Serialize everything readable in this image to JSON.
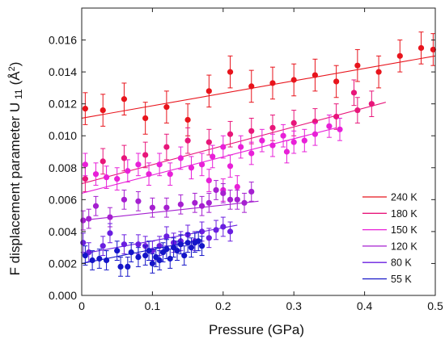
{
  "chart_data": {
    "type": "scatter",
    "xlabel": "Pressure (GPa)",
    "ylabel": "F displacement parameter U",
    "ylabel_sub": "11",
    "ylabel_unit": "(Å",
    "ylabel_sup": "2",
    "ylabel_close": ")",
    "xlim": [
      0,
      0.5
    ],
    "ylim": [
      0,
      0.018
    ],
    "xticks": [
      "0",
      "0.1",
      "0.2",
      "0.3",
      "0.4",
      "0.5"
    ],
    "yticks": [
      "0.000",
      "0.002",
      "0.004",
      "0.006",
      "0.008",
      "0.010",
      "0.012",
      "0.014",
      "0.016"
    ],
    "grid": false,
    "legend_position": "bottom-right",
    "series": [
      {
        "name": "240 K",
        "color": "#e8141c",
        "fit": [
          [
            0.0,
            0.0111
          ],
          [
            0.5,
            0.015
          ]
        ],
        "points": [
          [
            0.005,
            0.0117,
            0.001
          ],
          [
            0.03,
            0.0116,
            0.001
          ],
          [
            0.06,
            0.0123,
            0.001
          ],
          [
            0.09,
            0.0111,
            0.001
          ],
          [
            0.12,
            0.0118,
            0.001
          ],
          [
            0.15,
            0.011,
            0.001
          ],
          [
            0.18,
            0.0128,
            0.001
          ],
          [
            0.21,
            0.014,
            0.001
          ],
          [
            0.24,
            0.0131,
            0.001
          ],
          [
            0.27,
            0.0133,
            0.001
          ],
          [
            0.3,
            0.0135,
            0.001
          ],
          [
            0.33,
            0.0138,
            0.001
          ],
          [
            0.36,
            0.0134,
            0.001
          ],
          [
            0.39,
            0.0144,
            0.001
          ],
          [
            0.42,
            0.014,
            0.001
          ],
          [
            0.45,
            0.015,
            0.001
          ],
          [
            0.48,
            0.0155,
            0.001
          ],
          [
            0.497,
            0.0154,
            0.001
          ]
        ]
      },
      {
        "name": "180 K",
        "color": "#e8167a",
        "fit": [
          [
            0.0,
            0.007
          ],
          [
            0.43,
            0.0121
          ]
        ],
        "points": [
          [
            0.005,
            0.0073,
            0.0008
          ],
          [
            0.03,
            0.0084,
            0.0008
          ],
          [
            0.06,
            0.0086,
            0.0008
          ],
          [
            0.09,
            0.0088,
            0.0008
          ],
          [
            0.12,
            0.0093,
            0.0008
          ],
          [
            0.15,
            0.0097,
            0.0008
          ],
          [
            0.18,
            0.0096,
            0.0008
          ],
          [
            0.21,
            0.0101,
            0.0008
          ],
          [
            0.24,
            0.0103,
            0.0008
          ],
          [
            0.27,
            0.0105,
            0.0008
          ],
          [
            0.3,
            0.0108,
            0.0008
          ],
          [
            0.33,
            0.0109,
            0.0008
          ],
          [
            0.36,
            0.0112,
            0.0008
          ],
          [
            0.39,
            0.0116,
            0.0008
          ],
          [
            0.41,
            0.012,
            0.0008
          ],
          [
            0.385,
            0.0127,
            0.0008
          ]
        ]
      },
      {
        "name": "150 K",
        "color": "#e820d8",
        "fit": [
          [
            0.0,
            0.0064
          ],
          [
            0.36,
            0.0105
          ]
        ],
        "points": [
          [
            0.005,
            0.0082,
            0.0007
          ],
          [
            0.02,
            0.0076,
            0.0007
          ],
          [
            0.035,
            0.0074,
            0.0007
          ],
          [
            0.05,
            0.0073,
            0.0007
          ],
          [
            0.065,
            0.0078,
            0.0007
          ],
          [
            0.08,
            0.0082,
            0.0007
          ],
          [
            0.095,
            0.0076,
            0.0007
          ],
          [
            0.11,
            0.0082,
            0.0007
          ],
          [
            0.125,
            0.0076,
            0.0007
          ],
          [
            0.14,
            0.0086,
            0.0007
          ],
          [
            0.155,
            0.008,
            0.0007
          ],
          [
            0.17,
            0.0082,
            0.0007
          ],
          [
            0.185,
            0.0087,
            0.0007
          ],
          [
            0.2,
            0.0093,
            0.0007
          ],
          [
            0.21,
            0.0081,
            0.0007
          ],
          [
            0.225,
            0.0093,
            0.0007
          ],
          [
            0.24,
            0.0089,
            0.0007
          ],
          [
            0.255,
            0.0097,
            0.0007
          ],
          [
            0.27,
            0.0094,
            0.0007
          ],
          [
            0.285,
            0.01,
            0.0007
          ],
          [
            0.3,
            0.0096,
            0.0007
          ],
          [
            0.315,
            0.0097,
            0.0007
          ],
          [
            0.33,
            0.0101,
            0.0007
          ],
          [
            0.35,
            0.0106,
            0.0007
          ],
          [
            0.365,
            0.0104,
            0.0007
          ],
          [
            0.29,
            0.009,
            0.0007
          ],
          [
            0.18,
            0.0072,
            0.0007
          ],
          [
            0.2,
            0.0066,
            0.0007
          ],
          [
            0.22,
            0.0068,
            0.0007
          ]
        ]
      },
      {
        "name": "120 K",
        "color": "#a51fd0",
        "fit": [
          [
            0.0,
            0.0047
          ],
          [
            0.25,
            0.0059
          ]
        ],
        "points": [
          [
            0.002,
            0.0047,
            0.0006
          ],
          [
            0.01,
            0.0048,
            0.0006
          ],
          [
            0.02,
            0.0056,
            0.0006
          ],
          [
            0.04,
            0.0049,
            0.0006
          ],
          [
            0.06,
            0.006,
            0.0006
          ],
          [
            0.08,
            0.0059,
            0.0006
          ],
          [
            0.1,
            0.0055,
            0.0006
          ],
          [
            0.12,
            0.0055,
            0.0006
          ],
          [
            0.14,
            0.0057,
            0.0006
          ],
          [
            0.16,
            0.0058,
            0.0006
          ],
          [
            0.17,
            0.0056,
            0.0006
          ],
          [
            0.18,
            0.0058,
            0.0006
          ],
          [
            0.19,
            0.0066,
            0.0006
          ],
          [
            0.2,
            0.0064,
            0.0006
          ],
          [
            0.21,
            0.006,
            0.0006
          ],
          [
            0.22,
            0.006,
            0.0006
          ],
          [
            0.23,
            0.0058,
            0.0006
          ],
          [
            0.24,
            0.0065,
            0.0006
          ]
        ]
      },
      {
        "name": "80 K",
        "color": "#6a1ee0",
        "fit": [
          [
            0.0,
            0.0026
          ],
          [
            0.22,
            0.0044
          ]
        ],
        "points": [
          [
            0.002,
            0.0033,
            0.0006
          ],
          [
            0.01,
            0.0027,
            0.0006
          ],
          [
            0.03,
            0.0031,
            0.0006
          ],
          [
            0.04,
            0.0039,
            0.0006
          ],
          [
            0.06,
            0.0032,
            0.0006
          ],
          [
            0.08,
            0.0032,
            0.0006
          ],
          [
            0.09,
            0.0031,
            0.0006
          ],
          [
            0.1,
            0.0028,
            0.0006
          ],
          [
            0.11,
            0.0031,
            0.0006
          ],
          [
            0.12,
            0.0037,
            0.0006
          ],
          [
            0.13,
            0.0033,
            0.0006
          ],
          [
            0.14,
            0.0034,
            0.0006
          ],
          [
            0.15,
            0.0038,
            0.0006
          ],
          [
            0.16,
            0.0034,
            0.0006
          ],
          [
            0.17,
            0.004,
            0.0006
          ],
          [
            0.18,
            0.0036,
            0.0006
          ],
          [
            0.19,
            0.0041,
            0.0006
          ],
          [
            0.2,
            0.0043,
            0.0006
          ],
          [
            0.21,
            0.004,
            0.0006
          ]
        ]
      },
      {
        "name": "55 K",
        "color": "#1515c8",
        "fit": [
          [
            0.0,
            0.002
          ],
          [
            0.17,
            0.0035
          ]
        ],
        "points": [
          [
            0.005,
            0.0025,
            0.0006
          ],
          [
            0.015,
            0.0022,
            0.0006
          ],
          [
            0.025,
            0.0023,
            0.0006
          ],
          [
            0.035,
            0.0022,
            0.0006
          ],
          [
            0.05,
            0.0028,
            0.0006
          ],
          [
            0.055,
            0.0018,
            0.0006
          ],
          [
            0.065,
            0.0018,
            0.0006
          ],
          [
            0.07,
            0.0027,
            0.0006
          ],
          [
            0.08,
            0.0024,
            0.0006
          ],
          [
            0.09,
            0.0025,
            0.0006
          ],
          [
            0.095,
            0.0028,
            0.0006
          ],
          [
            0.1,
            0.002,
            0.0006
          ],
          [
            0.105,
            0.0024,
            0.0006
          ],
          [
            0.11,
            0.0022,
            0.0006
          ],
          [
            0.115,
            0.0027,
            0.0006
          ],
          [
            0.12,
            0.0029,
            0.0006
          ],
          [
            0.125,
            0.0023,
            0.0006
          ],
          [
            0.13,
            0.003,
            0.0006
          ],
          [
            0.135,
            0.0028,
            0.0006
          ],
          [
            0.14,
            0.0032,
            0.0006
          ],
          [
            0.145,
            0.0025,
            0.0006
          ],
          [
            0.15,
            0.0033,
            0.0006
          ],
          [
            0.155,
            0.003,
            0.0006
          ],
          [
            0.16,
            0.0033,
            0.0006
          ],
          [
            0.165,
            0.0034,
            0.0006
          ],
          [
            0.17,
            0.0031,
            0.0006
          ]
        ]
      }
    ]
  }
}
